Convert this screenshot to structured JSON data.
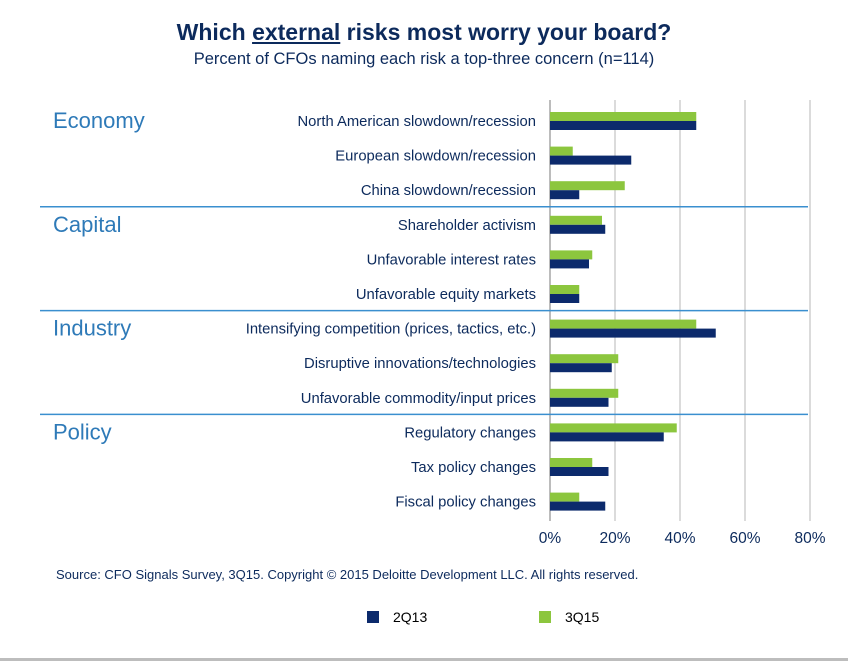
{
  "title_parts": {
    "before": "Which ",
    "underlined": "external",
    "after": " risks most worry your board?"
  },
  "subtitle": "Percent of CFOs naming each risk a top-three concern (n=114)",
  "source": "Source: CFO Signals Survey, 3Q15. Copyright © 2015 Deloitte Development LLC. All rights reserved.",
  "colors": {
    "series_2Q13": "#0c2a6c",
    "series_3Q15": "#8cc63e",
    "group_label": "#2e7ab8",
    "divider": "#3a8fcf",
    "grid": "#cfcfcf"
  },
  "chart_data": {
    "type": "bar",
    "orientation": "horizontal",
    "title": "Which external risks most worry your board?",
    "subtitle": "Percent of CFOs naming each risk a top-three concern (n=114)",
    "xlim": [
      0,
      80
    ],
    "xticks": [
      "0%",
      "20%",
      "40%",
      "60%",
      "80%"
    ],
    "grid": "vertical",
    "legend_placement": "bottom",
    "groups": [
      {
        "name": "Economy",
        "categories": [
          "North American slowdown/recession",
          "European slowdown/recession",
          "China slowdown/recession"
        ]
      },
      {
        "name": "Capital",
        "categories": [
          "Shareholder activism",
          "Unfavorable interest rates",
          "Unfavorable equity markets"
        ]
      },
      {
        "name": "Industry",
        "categories": [
          "Intensifying competition (prices, tactics, etc.)",
          "Disruptive innovations/technologies",
          "Unfavorable commodity/input prices"
        ]
      },
      {
        "name": "Policy",
        "categories": [
          "Regulatory changes",
          "Tax policy changes",
          "Fiscal policy changes"
        ]
      }
    ],
    "categories": [
      "North American slowdown/recession",
      "European slowdown/recession",
      "China slowdown/recession",
      "Shareholder activism",
      "Unfavorable interest rates",
      "Unfavorable equity markets",
      "Intensifying competition (prices, tactics, etc.)",
      "Disruptive innovations/technologies",
      "Unfavorable commodity/input prices",
      "Regulatory changes",
      "Tax policy changes",
      "Fiscal policy changes"
    ],
    "series": [
      {
        "name": "2Q13",
        "values": [
          45,
          25,
          9,
          17,
          12,
          9,
          51,
          19,
          18,
          35,
          18,
          17
        ]
      },
      {
        "name": "3Q15",
        "values": [
          45,
          7,
          23,
          16,
          13,
          9,
          45,
          21,
          21,
          39,
          13,
          9
        ]
      }
    ]
  }
}
